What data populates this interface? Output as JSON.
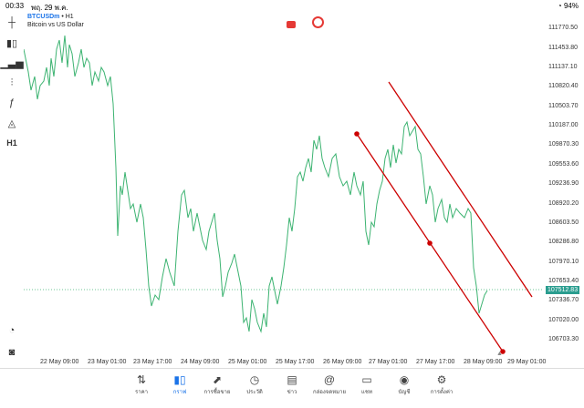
{
  "status": {
    "time": "00:33",
    "date": "พฤ. 29 พ.ค.",
    "battery": "94%"
  },
  "symbol": {
    "name": "BTCUSDm",
    "timeframe": "H1",
    "description": "Bitcoin vs US Dollar"
  },
  "price_axis": [
    "111770.50",
    "111453.80",
    "111137.10",
    "110820.40",
    "110503.70",
    "110187.00",
    "109870.30",
    "109553.60",
    "109236.90",
    "108920.20",
    "108603.50",
    "108286.80",
    "107970.10",
    "107653.40",
    "107336.70",
    "107020.00",
    "106703.30"
  ],
  "current_price": "107512.83",
  "time_axis": [
    "22 May 09:00",
    "23 May 01:00",
    "23 May 17:00",
    "24 May 09:00",
    "25 May 01:00",
    "25 May 17:00",
    "26 May 09:00",
    "27 May 01:00",
    "27 May 17:00",
    "28 May 09:00",
    "29 May 01:00"
  ],
  "nav": [
    {
      "label": "ราคา",
      "icon": "quotes-icon"
    },
    {
      "label": "กราฟ",
      "icon": "chart-icon"
    },
    {
      "label": "การซื้อขาย",
      "icon": "trade-icon"
    },
    {
      "label": "ประวัติ",
      "icon": "history-icon"
    },
    {
      "label": "ข่าว",
      "icon": "news-icon"
    },
    {
      "label": "กล่องจดหมาย",
      "icon": "mail-icon"
    },
    {
      "label": "แชท",
      "icon": "chat-icon"
    },
    {
      "label": "บัญชี",
      "icon": "account-icon"
    },
    {
      "label": "การตั้งค่า",
      "icon": "settings-icon"
    }
  ],
  "colors": {
    "line": "#3cb371",
    "trend": "#cc0000",
    "accent": "#1a73e8"
  }
}
